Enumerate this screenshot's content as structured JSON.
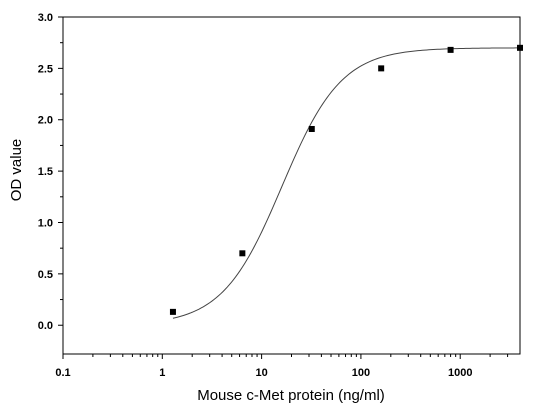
{
  "chart_data": {
    "type": "scatter",
    "title": "",
    "xlabel": "Mouse c-Met protein (ng/ml)",
    "ylabel": "OD value",
    "xscale": "log",
    "xlim": [
      0.1,
      4000
    ],
    "ylim": [
      -0.28,
      3.0
    ],
    "x_ticks": [
      0.1,
      1,
      10,
      100,
      1000
    ],
    "x_tick_labels": [
      "0.1",
      "1",
      "10",
      "100",
      "1000"
    ],
    "y_ticks": [
      0.0,
      0.5,
      1.0,
      1.5,
      2.0,
      2.5,
      3.0
    ],
    "y_tick_labels": [
      "0.0",
      "0.5",
      "1.0",
      "1.5",
      "2.0",
      "2.5",
      "3.0"
    ],
    "grid": false,
    "legend": "none",
    "series": [
      {
        "x": [
          1.28,
          6.4,
          32,
          160,
          800,
          4000
        ],
        "y": [
          0.13,
          0.7,
          1.91,
          2.5,
          2.68,
          2.7
        ],
        "marker": "square",
        "fit": "4PL",
        "color": "#000000"
      }
    ]
  }
}
